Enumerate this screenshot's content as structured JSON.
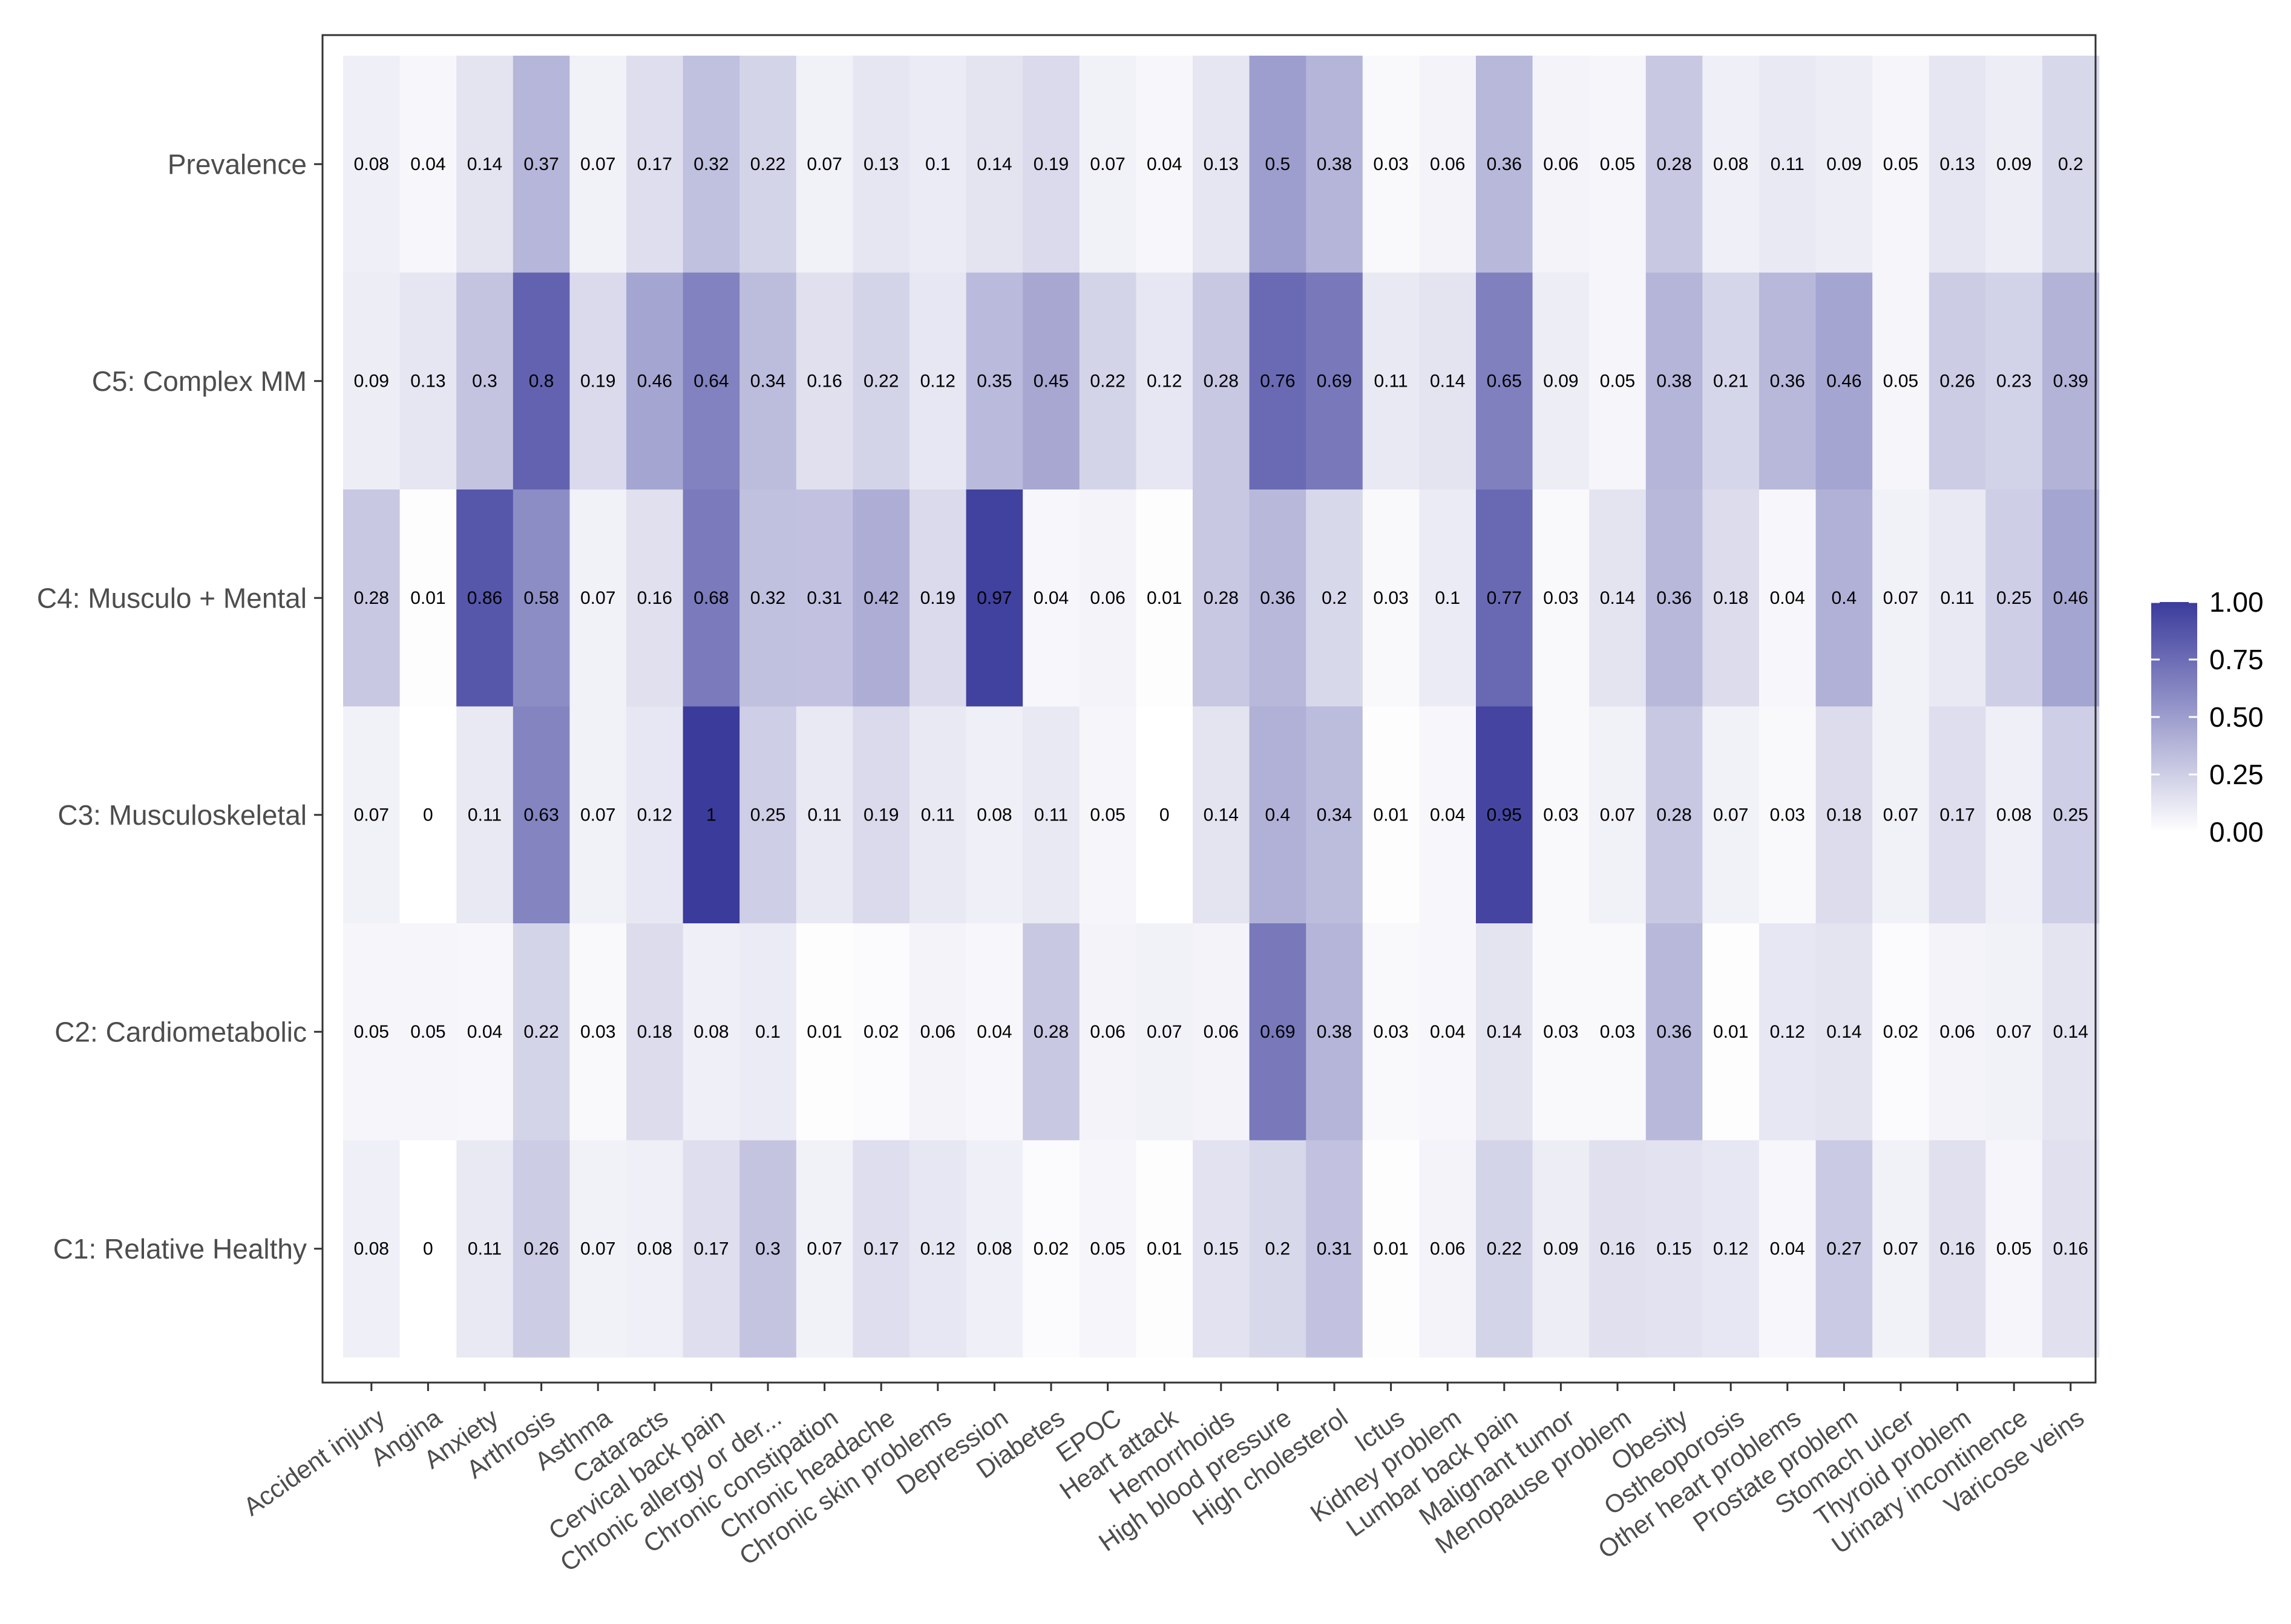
{
  "chart_data": {
    "type": "heatmap",
    "title": "",
    "xlabel": "",
    "ylabel": "",
    "colors": {
      "low": "#FFFFFF",
      "high": "#3B3B9C",
      "axis": "#333333",
      "text": "#4D4D4D"
    },
    "x": [
      "Accident injury",
      "Angina",
      "Anxiety",
      "Arthrosis",
      "Asthma",
      "Cataracts",
      "Cervical back pain",
      "Chronic allergy or der...",
      "Chronic constipation",
      "Chronic headache",
      "Chronic skin problems",
      "Depression",
      "Diabetes",
      "EPOC",
      "Heart attack",
      "Hemorrhoids",
      "High blood pressure",
      "High cholesterol",
      "Ictus",
      "Kidney problem",
      "Lumbar back pain",
      "Malignant tumor",
      "Menopause problem",
      "Obesity",
      "Ostheoporosis",
      "Other heart problems",
      "Prostate problem",
      "Stomach ulcer",
      "Thyroid problem",
      "Urinary incontinence",
      "Varicose veins"
    ],
    "y": [
      "Prevalence",
      "C5: Complex MM",
      "C4: Musculo + Mental",
      "C3: Musculoskeletal",
      "C2: Cardiometabolic",
      "C1: Relative Healthy"
    ],
    "values": [
      [
        0.08,
        0.04,
        0.14,
        0.37,
        0.07,
        0.17,
        0.32,
        0.22,
        0.07,
        0.13,
        0.1,
        0.14,
        0.19,
        0.07,
        0.04,
        0.13,
        0.5,
        0.38,
        0.03,
        0.06,
        0.36,
        0.06,
        0.05,
        0.28,
        0.08,
        0.11,
        0.09,
        0.05,
        0.13,
        0.09,
        0.2
      ],
      [
        0.09,
        0.13,
        0.3,
        0.8,
        0.19,
        0.46,
        0.64,
        0.34,
        0.16,
        0.22,
        0.12,
        0.35,
        0.45,
        0.22,
        0.12,
        0.28,
        0.76,
        0.69,
        0.11,
        0.14,
        0.65,
        0.09,
        0.05,
        0.38,
        0.21,
        0.36,
        0.46,
        0.05,
        0.26,
        0.23,
        0.39
      ],
      [
        0.28,
        0.01,
        0.86,
        0.58,
        0.07,
        0.16,
        0.68,
        0.32,
        0.31,
        0.42,
        0.19,
        0.97,
        0.04,
        0.06,
        0.01,
        0.28,
        0.36,
        0.2,
        0.03,
        0.1,
        0.77,
        0.03,
        0.14,
        0.36,
        0.18,
        0.04,
        0.4,
        0.07,
        0.11,
        0.25,
        0.46
      ],
      [
        0.07,
        0,
        0.11,
        0.63,
        0.07,
        0.12,
        1,
        0.25,
        0.11,
        0.19,
        0.11,
        0.08,
        0.11,
        0.05,
        0,
        0.14,
        0.4,
        0.34,
        0.01,
        0.04,
        0.95,
        0.03,
        0.07,
        0.28,
        0.07,
        0.03,
        0.18,
        0.07,
        0.17,
        0.08,
        0.25
      ],
      [
        0.05,
        0.05,
        0.04,
        0.22,
        0.03,
        0.18,
        0.08,
        0.1,
        0.01,
        0.02,
        0.06,
        0.04,
        0.28,
        0.06,
        0.07,
        0.06,
        0.69,
        0.38,
        0.03,
        0.04,
        0.14,
        0.03,
        0.03,
        0.36,
        0.01,
        0.12,
        0.14,
        0.02,
        0.06,
        0.07,
        0.14
      ],
      [
        0.08,
        0,
        0.11,
        0.26,
        0.07,
        0.08,
        0.17,
        0.3,
        0.07,
        0.17,
        0.12,
        0.08,
        0.02,
        0.05,
        0.01,
        0.15,
        0.2,
        0.31,
        0.01,
        0.06,
        0.22,
        0.09,
        0.16,
        0.15,
        0.12,
        0.04,
        0.27,
        0.07,
        0.16,
        0.05,
        0.16
      ]
    ],
    "legend": {
      "position": "right",
      "range": [
        0,
        1
      ],
      "ticks": [
        1.0,
        0.75,
        0.5,
        0.25,
        0.0
      ],
      "tick_labels": [
        "1.00",
        "0.75",
        "0.50",
        "0.25",
        "0.00"
      ]
    }
  }
}
